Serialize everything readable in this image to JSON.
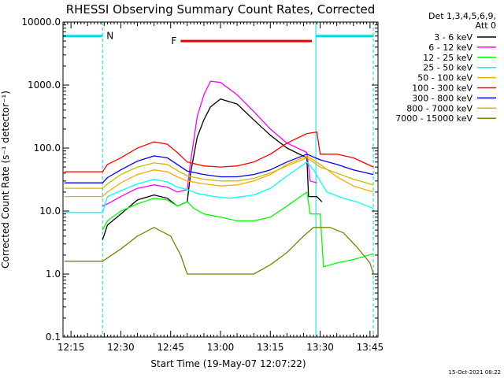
{
  "chart_data": {
    "type": "line",
    "title": "RHESSI Observing Summary Count Rates, Corrected",
    "xlabel": "Start Time (19-May-07 12:07:22)",
    "ylabel": "Corrected Count Rate (s⁻¹ detector⁻¹)",
    "yscale": "log",
    "ylim": [
      0.1,
      10000
    ],
    "xlim_minutes": [
      12.6,
      107.4
    ],
    "xticks": [
      {
        "minutes": 15,
        "label": "12:15"
      },
      {
        "minutes": 30,
        "label": "12:30"
      },
      {
        "minutes": 45,
        "label": "12:45"
      },
      {
        "minutes": 60,
        "label": "13:00"
      },
      {
        "minutes": 75,
        "label": "13:15"
      },
      {
        "minutes": 90,
        "label": "13:30"
      },
      {
        "minutes": 105,
        "label": "13:45"
      }
    ],
    "yticks": [
      {
        "value": 0.1,
        "label": "0.1"
      },
      {
        "value": 1,
        "label": "1.0"
      },
      {
        "value": 10,
        "label": "10.0"
      },
      {
        "value": 100,
        "label": "100.0"
      },
      {
        "value": 1000,
        "label": "1000.0"
      },
      {
        "value": 10000,
        "label": "10000.0"
      }
    ],
    "legend_header": [
      "Det 1,3,4,5,6,9,",
      "Att 0"
    ],
    "legend_position": "right",
    "series": [
      {
        "name": "3 - 6 keV",
        "color": "#000000",
        "x": [
          24.5,
          26,
          30,
          35,
          40,
          44,
          47,
          50,
          51,
          53,
          55,
          57,
          60,
          65,
          70,
          75,
          80,
          86,
          86.5,
          89,
          90.5
        ],
        "y": [
          3.5,
          6,
          9,
          15,
          18,
          16,
          12,
          14,
          40,
          150,
          280,
          450,
          600,
          500,
          280,
          160,
          100,
          70,
          17,
          17,
          14
        ]
      },
      {
        "name": "6 - 12 keV",
        "color": "#ff00ff",
        "x": [
          24.5,
          26,
          30,
          35,
          40,
          44,
          47,
          50,
          51,
          53,
          55,
          57,
          60,
          65,
          70,
          75,
          80,
          86,
          87,
          89
        ],
        "y": [
          12,
          13,
          17,
          23,
          26,
          24,
          20,
          22,
          60,
          320,
          700,
          1150,
          1100,
          700,
          380,
          200,
          120,
          85,
          30,
          28
        ]
      },
      {
        "name": "12 - 25 keV",
        "color": "#00ff00",
        "x": [
          24.5,
          26,
          30,
          35,
          40,
          44,
          47,
          50,
          52,
          55,
          60,
          65,
          70,
          75,
          80,
          86,
          87,
          90,
          91,
          95,
          100,
          106
        ],
        "y": [
          5,
          7,
          10,
          13,
          16,
          15,
          12,
          14,
          11,
          9,
          8,
          7,
          7,
          8,
          12,
          20,
          9,
          9,
          1.3,
          1.5,
          1.7,
          2.1
        ]
      },
      {
        "name": "25 - 50 keV",
        "color": "#00ffff",
        "x": [
          13,
          24.5,
          26,
          30,
          35,
          40,
          44,
          47,
          50,
          53,
          58,
          63,
          70,
          75,
          80,
          86,
          88,
          92,
          97,
          101,
          106
        ],
        "y": [
          9.5,
          9.5,
          17,
          21,
          27,
          32,
          29,
          24,
          22,
          19,
          17,
          16,
          18,
          23,
          36,
          60,
          45,
          20,
          16,
          14,
          11
        ]
      },
      {
        "name": "50 - 100 keV",
        "color": "#ffaa00",
        "x": [
          13,
          24.5,
          26,
          30,
          35,
          40,
          44,
          47,
          50,
          55,
          60,
          65,
          70,
          75,
          80,
          86,
          90,
          95,
          100,
          106
        ],
        "y": [
          17,
          17,
          20,
          28,
          38,
          45,
          42,
          35,
          30,
          27,
          25,
          26,
          30,
          38,
          55,
          75,
          55,
          35,
          25,
          20
        ]
      },
      {
        "name": "100 - 300 keV",
        "color": "#ff0000",
        "x": [
          13,
          24.5,
          26,
          30,
          35,
          40,
          44,
          47,
          50,
          55,
          60,
          65,
          70,
          75,
          80,
          86,
          89,
          90,
          95,
          100,
          106
        ],
        "y": [
          42,
          42,
          55,
          70,
          100,
          125,
          115,
          85,
          60,
          52,
          50,
          52,
          60,
          80,
          120,
          170,
          180,
          80,
          80,
          70,
          50
        ]
      },
      {
        "name": "300 - 800 keV",
        "color": "#0000ff",
        "x": [
          13,
          24.5,
          26,
          30,
          35,
          40,
          44,
          47,
          50,
          55,
          60,
          65,
          70,
          75,
          80,
          86,
          90,
          95,
          100,
          106
        ],
        "y": [
          28,
          28,
          34,
          45,
          62,
          75,
          70,
          55,
          43,
          38,
          35,
          35,
          38,
          45,
          60,
          80,
          65,
          55,
          45,
          38
        ]
      },
      {
        "name": "800 - 7000 keV",
        "color": "#ccbb00",
        "x": [
          13,
          24.5,
          26,
          30,
          35,
          40,
          44,
          47,
          50,
          55,
          60,
          65,
          70,
          75,
          80,
          86,
          90,
          95,
          100,
          106
        ],
        "y": [
          23,
          23,
          27,
          38,
          50,
          58,
          55,
          44,
          36,
          32,
          30,
          30,
          33,
          40,
          52,
          70,
          50,
          40,
          32,
          26
        ]
      },
      {
        "name": "7000 - 15000 keV",
        "color": "#808000",
        "x": [
          13,
          24.5,
          26,
          30,
          35,
          40,
          45,
          48,
          50,
          55,
          60,
          65,
          70,
          75,
          80,
          85,
          88,
          93,
          97,
          101,
          105,
          106
        ],
        "y": [
          1.6,
          1.6,
          1.8,
          2.5,
          4,
          5.5,
          4,
          2,
          1,
          1,
          1,
          1,
          1,
          1.4,
          2.2,
          4,
          5.5,
          5.5,
          4.5,
          2.7,
          1.5,
          1
        ]
      }
    ],
    "annotations": [
      {
        "label": "N",
        "color": "#00dddd",
        "y": 6000,
        "bars_minutes": [
          [
            12.6,
            24.5
          ],
          [
            88.7,
            106
          ]
        ],
        "dashed_lines_minutes": [
          24.5,
          106
        ],
        "solid_lines_minutes": [
          12.6,
          88.7
        ]
      },
      {
        "label": "F",
        "color": "#ee0000",
        "y": 5000,
        "bars_minutes": [
          [
            48,
            87.5
          ]
        ]
      }
    ],
    "timestamp": "15-Oct-2021 08:22"
  }
}
